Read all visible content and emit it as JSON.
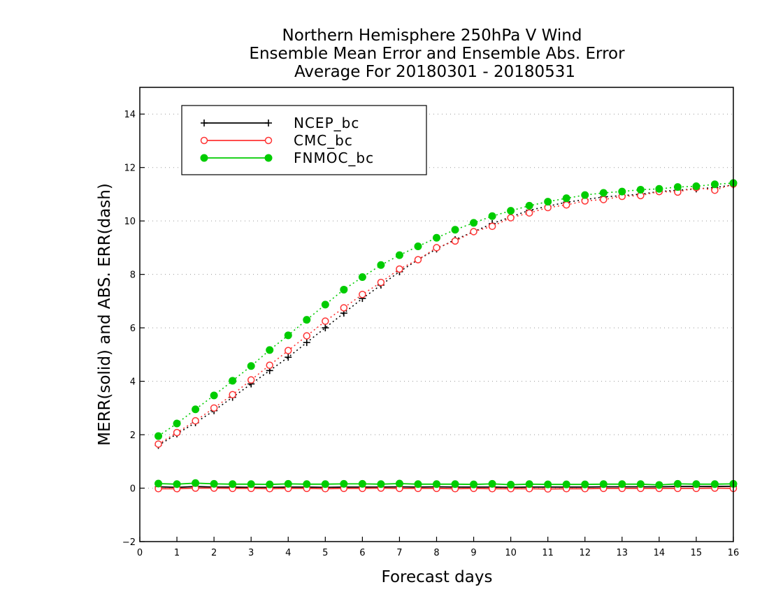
{
  "chart_data": {
    "type": "line",
    "title_lines": [
      "Northern Hemisphere 250hPa V Wind",
      "Ensemble Mean Error and Ensemble Abs. Error",
      "Average For 20180301 - 20180531"
    ],
    "xlabel": "Forecast days",
    "ylabel": "MERR(solid) and ABS. ERR(dash)",
    "xlim": [
      0,
      16
    ],
    "ylim": [
      -2,
      15
    ],
    "xticks": [
      "0",
      "1",
      "2",
      "3",
      "4",
      "5",
      "6",
      "7",
      "8",
      "9",
      "10",
      "11",
      "12",
      "13",
      "14",
      "15",
      "16"
    ],
    "yticks": [
      "−2",
      "0",
      "2",
      "4",
      "6",
      "8",
      "10",
      "12",
      "14"
    ],
    "grid": "dotted horizontal",
    "legend_position": "top-left",
    "x": [
      0.5,
      1,
      1.5,
      2,
      2.5,
      3,
      3.5,
      4,
      4.5,
      5,
      5.5,
      6,
      6.5,
      7,
      7.5,
      8,
      8.5,
      9,
      9.5,
      10,
      10.5,
      11,
      11.5,
      12,
      12.5,
      13,
      13.5,
      14,
      14.5,
      15,
      15.5,
      16
    ],
    "series": [
      {
        "name": "NCEP_bc",
        "color": "#000000",
        "marker": "plus",
        "merr": [
          0.05,
          0.03,
          0.06,
          0.04,
          0.04,
          0.03,
          0.03,
          0.04,
          0.04,
          0.03,
          0.04,
          0.04,
          0.04,
          0.05,
          0.04,
          0.05,
          0.04,
          0.04,
          0.04,
          0.03,
          0.04,
          0.04,
          0.04,
          0.04,
          0.05,
          0.05,
          0.05,
          0.05,
          0.06,
          0.06,
          0.06,
          0.07
        ],
        "abs_err": [
          1.6,
          2.03,
          2.45,
          2.9,
          3.4,
          3.9,
          4.4,
          4.9,
          5.45,
          6.0,
          6.55,
          7.1,
          7.6,
          8.1,
          8.55,
          8.95,
          9.3,
          9.6,
          9.9,
          10.15,
          10.4,
          10.55,
          10.7,
          10.8,
          10.9,
          10.95,
          11.0,
          11.1,
          11.15,
          11.2,
          11.25,
          11.35
        ]
      },
      {
        "name": "CMC_bc",
        "color": "#ff3333",
        "marker": "open-circle",
        "merr": [
          -0.02,
          -0.02,
          0.0,
          0.0,
          -0.01,
          -0.01,
          -0.02,
          -0.01,
          -0.01,
          -0.02,
          -0.01,
          -0.01,
          0.0,
          -0.01,
          -0.01,
          -0.01,
          -0.02,
          -0.01,
          -0.02,
          -0.02,
          -0.02,
          -0.03,
          -0.02,
          -0.02,
          -0.01,
          -0.01,
          -0.01,
          -0.01,
          -0.01,
          -0.01,
          0.0,
          -0.01
        ],
        "abs_err": [
          1.65,
          2.08,
          2.52,
          3.0,
          3.5,
          4.05,
          4.6,
          5.15,
          5.7,
          6.25,
          6.75,
          7.25,
          7.7,
          8.2,
          8.55,
          9.0,
          9.25,
          9.6,
          9.8,
          10.12,
          10.3,
          10.5,
          10.6,
          10.75,
          10.8,
          10.92,
          10.95,
          11.1,
          11.08,
          11.25,
          11.15,
          11.38
        ]
      },
      {
        "name": "FNMOC_bc",
        "color": "#00cc00",
        "marker": "filled-circle",
        "merr": [
          0.17,
          0.15,
          0.19,
          0.16,
          0.15,
          0.15,
          0.14,
          0.16,
          0.15,
          0.15,
          0.16,
          0.16,
          0.15,
          0.17,
          0.15,
          0.15,
          0.15,
          0.14,
          0.16,
          0.13,
          0.15,
          0.14,
          0.14,
          0.14,
          0.15,
          0.15,
          0.15,
          0.12,
          0.16,
          0.15,
          0.15,
          0.16
        ],
        "abs_err": [
          1.95,
          2.42,
          2.95,
          3.47,
          4.02,
          4.57,
          5.17,
          5.72,
          6.3,
          6.87,
          7.43,
          7.9,
          8.35,
          8.72,
          9.05,
          9.37,
          9.67,
          9.93,
          10.18,
          10.38,
          10.57,
          10.72,
          10.85,
          10.97,
          11.05,
          11.1,
          11.17,
          11.2,
          11.27,
          11.3,
          11.37,
          11.42
        ]
      }
    ]
  }
}
